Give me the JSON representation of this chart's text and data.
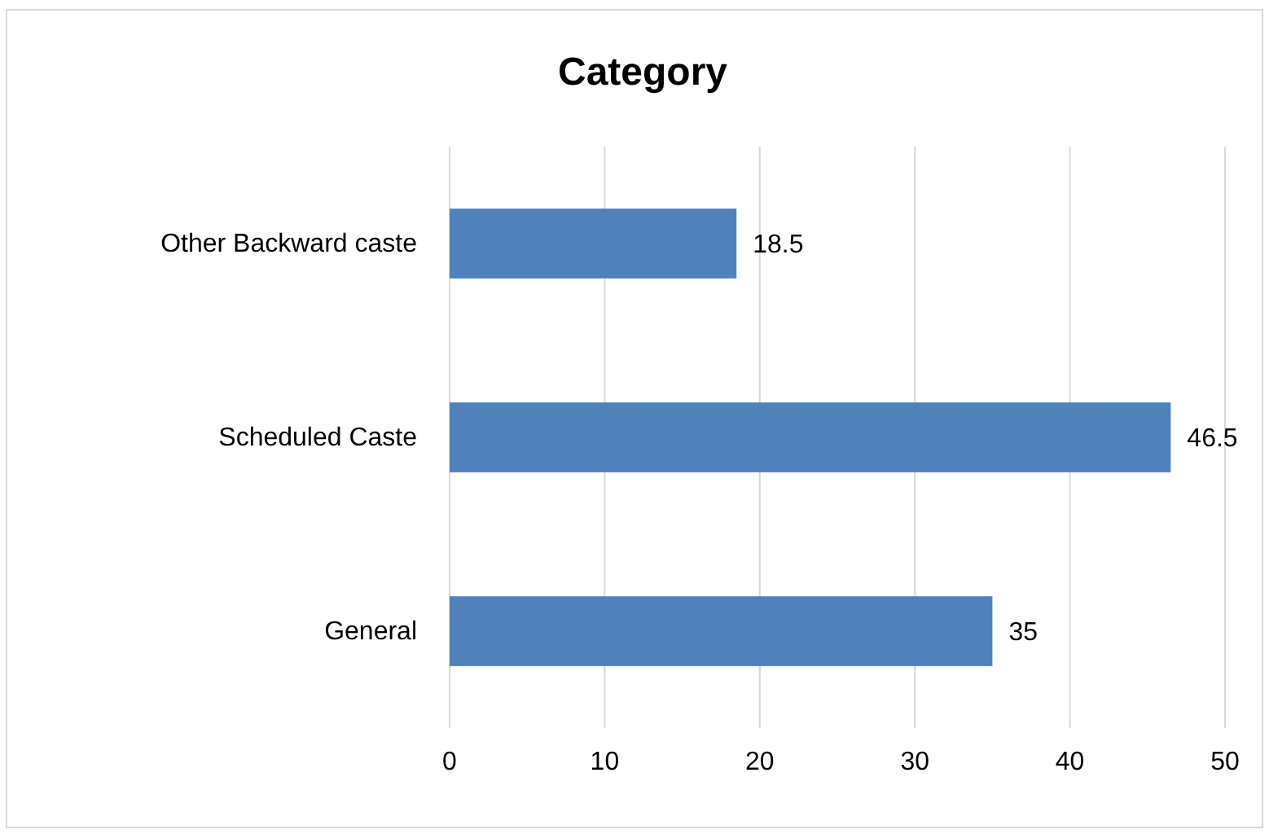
{
  "chart_data": {
    "type": "bar",
    "title": "Category",
    "orientation": "horizontal",
    "categories": [
      "Other Backward caste",
      "Scheduled Caste",
      "General"
    ],
    "values": [
      18.5,
      46.5,
      35
    ],
    "color": "#4f81bd",
    "xlim": [
      0,
      50
    ],
    "xticks": [
      0,
      10,
      20,
      30,
      40,
      50
    ],
    "grid": "x",
    "data_labels": true
  }
}
